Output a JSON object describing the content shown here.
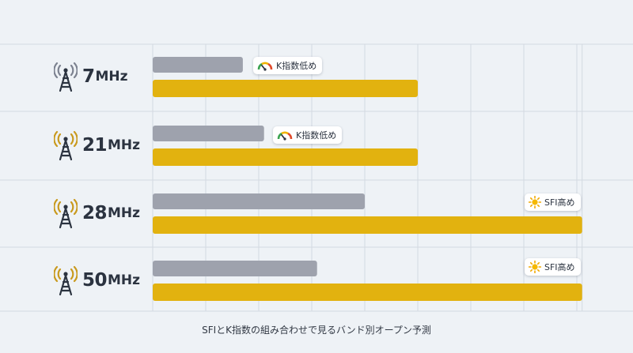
{
  "chart_data": {
    "type": "bar",
    "orientation": "horizontal",
    "title": "",
    "caption": "SFIとK指数の組み合わせで見るバンド別オープン予測",
    "categories": [
      {
        "num": "7",
        "unit": "MHz"
      },
      {
        "num": "21",
        "unit": "MHz"
      },
      {
        "num": "28",
        "unit": "MHz"
      },
      {
        "num": "50",
        "unit": "MHz"
      }
    ],
    "series": [
      {
        "color": "#9ea2ad",
        "values": [
          1.7,
          2.1,
          4.0,
          3.1
        ]
      },
      {
        "color": "#e2b20f",
        "values": [
          5.0,
          5.0,
          8.1,
          8.1
        ]
      }
    ],
    "annotations": [
      {
        "text": "K指数低め",
        "icon": "gauge-icon",
        "band": 0
      },
      {
        "text": "K指数低め",
        "icon": "gauge-icon",
        "band": 1
      },
      {
        "text": "SFI高め",
        "icon": "sun-icon",
        "band": 2
      },
      {
        "text": "SFI高め",
        "icon": "sun-icon",
        "band": 3
      }
    ],
    "xlim": [
      0,
      8.1
    ],
    "grid": true,
    "colors": {
      "grid": "#d3d9e1",
      "label": "#2b3340",
      "tower_7": "#7c8290",
      "tower": "#c99a1e"
    }
  }
}
